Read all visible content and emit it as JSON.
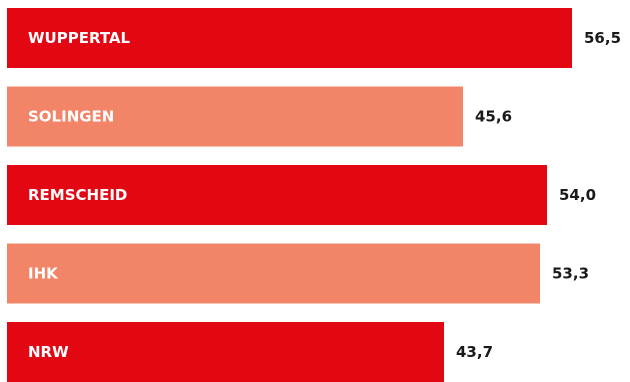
{
  "chart_data": {
    "type": "bar",
    "orientation": "horizontal",
    "categories": [
      "WUPPERTAL",
      "SOLINGEN",
      "REMSCHEID",
      "IHK",
      "NRW"
    ],
    "values": [
      56.5,
      45.6,
      54.0,
      53.3,
      43.7
    ],
    "value_labels": [
      "56,5",
      "45,6",
      "54,0",
      "53,3",
      "43,7"
    ],
    "bar_colors": [
      "#e30613",
      "#f28567",
      "#e30613",
      "#f28567",
      "#e30613"
    ],
    "xlim": [
      0,
      60
    ],
    "grid": false,
    "legend": "none",
    "title": "",
    "xlabel": "",
    "ylabel": ""
  },
  "colors": {
    "primary": "#e30613",
    "secondary": "#f28567",
    "label_text": "#ffffff",
    "value_text": "#1a1a1a"
  }
}
